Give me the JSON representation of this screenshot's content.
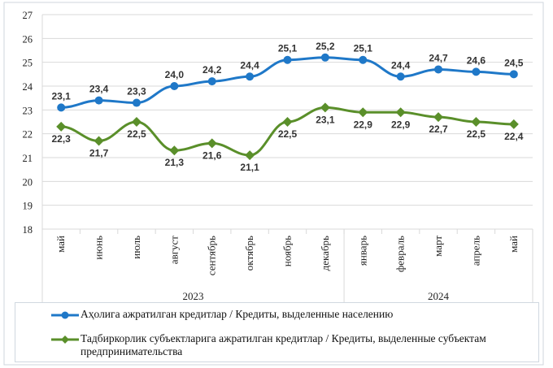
{
  "chart_data": {
    "type": "line",
    "categories": [
      "май",
      "июнь",
      "июль",
      "август",
      "сентябрь",
      "октябрь",
      "ноябрь",
      "декабрь",
      "январь",
      "февраль",
      "март",
      "апрель",
      "май"
    ],
    "groups": [
      {
        "label": "2023",
        "span": 8
      },
      {
        "label": "2024",
        "span": 5
      }
    ],
    "ylim": [
      18,
      27
    ],
    "yticks": [
      18,
      19,
      20,
      21,
      22,
      23,
      24,
      25,
      26,
      27
    ],
    "grid": true,
    "legend_position": "bottom",
    "series": [
      {
        "name": "Аҳолига ажратилган кредитлар / Кредиты, выделенные населению",
        "color": "#1f78c8",
        "marker": "circle",
        "values": [
          23.1,
          23.4,
          23.3,
          24.0,
          24.2,
          24.4,
          25.1,
          25.2,
          25.1,
          24.4,
          24.7,
          24.6,
          24.5
        ],
        "labels": [
          "23,1",
          "23,4",
          "23,3",
          "24,0",
          "24,2",
          "24,4",
          "25,1",
          "25,2",
          "25,1",
          "24,4",
          "24,7",
          "24,6",
          "24,5"
        ]
      },
      {
        "name": "Тадбиркорлик субъектларига ажратилган кредитлар / Кредиты, выделенные субъектам предпринимательства",
        "color": "#5a8f2a",
        "marker": "diamond",
        "values": [
          22.3,
          21.7,
          22.5,
          21.3,
          21.6,
          21.1,
          22.5,
          23.1,
          22.9,
          22.9,
          22.7,
          22.5,
          22.4
        ],
        "labels": [
          "22,3",
          "21,7",
          "22,5",
          "21,3",
          "21,6",
          "21,1",
          "22,5",
          "23,1",
          "22,9",
          "22,9",
          "22,7",
          "22,5",
          "22,4"
        ]
      }
    ]
  }
}
